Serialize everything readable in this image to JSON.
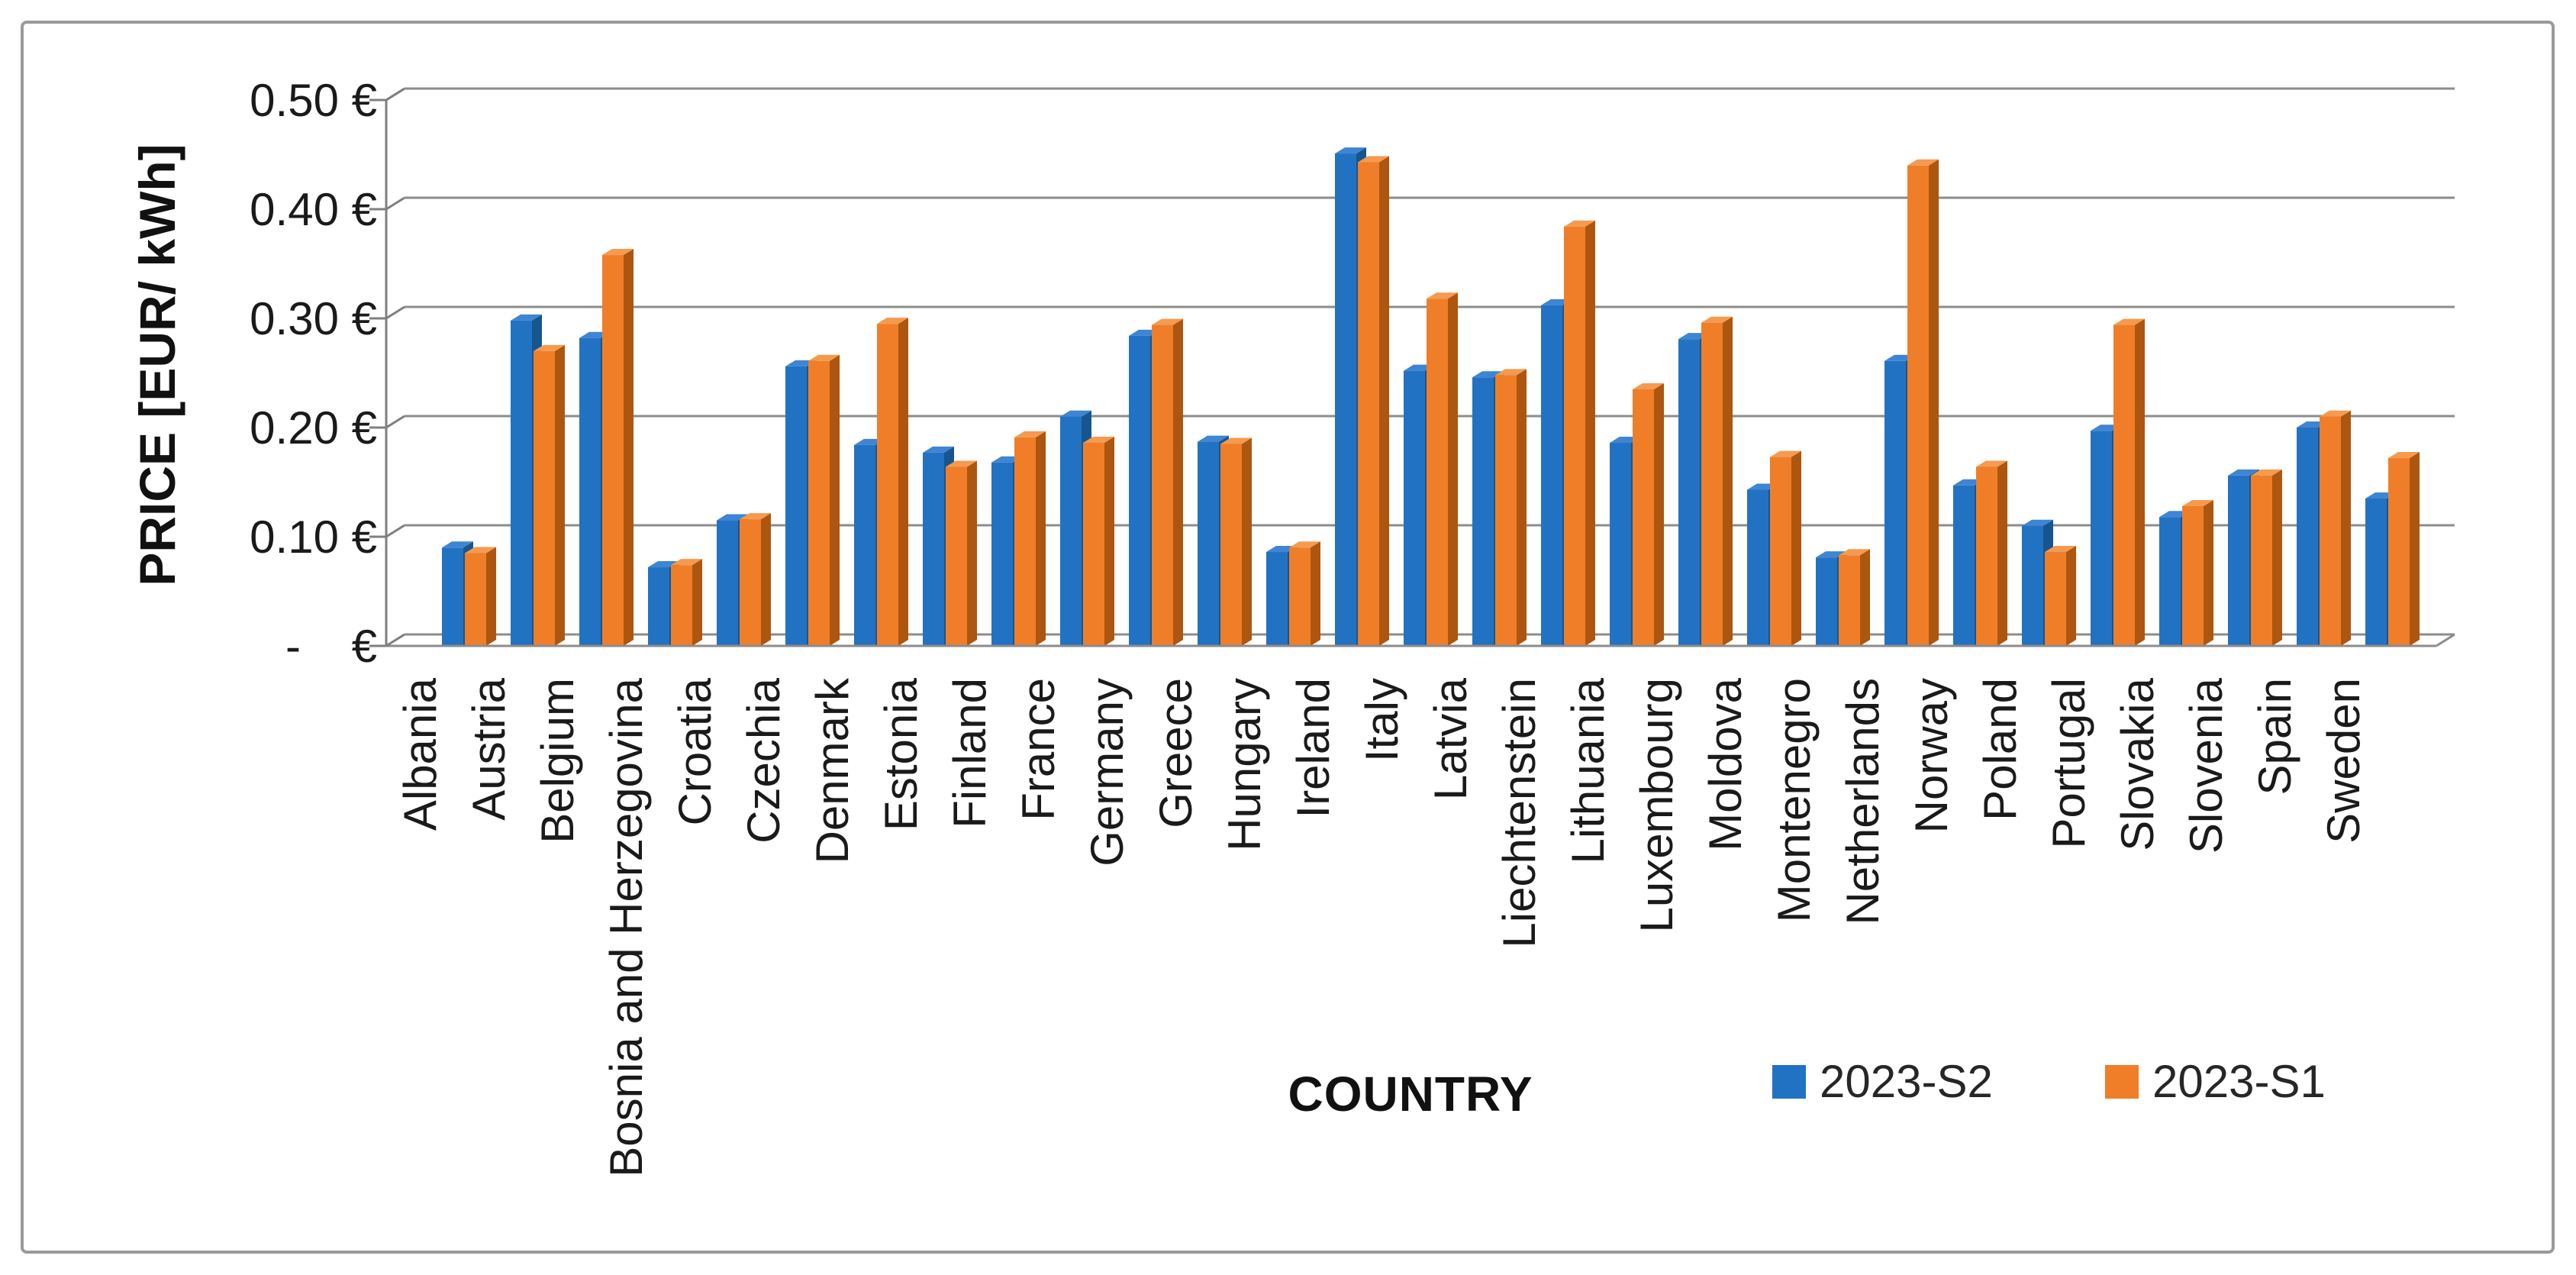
{
  "chart_data": {
    "type": "bar",
    "style_3d": "clustered-3d",
    "title": "",
    "xlabel": "COUNTRY",
    "ylabel": "PRICE [EUR/ kWh]",
    "categories": [
      "Albania",
      "Austria",
      "Belgium",
      "Bosnia and Herzegovina",
      "Croatia",
      "Czechia",
      "Denmark",
      "Estonia",
      "Finland",
      "France",
      "Germany",
      "Greece",
      "Hungary",
      "Ireland",
      "Italy",
      "Latvia",
      "Liechtenstein",
      "Lithuania",
      "Luxembourg",
      "Moldova",
      "Montenegro",
      "Netherlands",
      "Norway",
      "Poland",
      "Portugal",
      "Slovakia",
      "Slovenia",
      "Spain",
      "Sweden"
    ],
    "series": [
      {
        "name": "2023-S2",
        "color": "#2272C4",
        "color_top": "#3E85D3",
        "color_side": "#17558F",
        "values": [
          0.09,
          0.298,
          0.282,
          0.072,
          0.115,
          0.256,
          0.184,
          0.177,
          0.168,
          0.21,
          0.284,
          0.187,
          0.086,
          0.451,
          0.252,
          0.246,
          0.312,
          0.186,
          0.281,
          0.143,
          0.081,
          0.261,
          0.147,
          0.11,
          0.197,
          0.118,
          0.156,
          0.2,
          0.135
        ]
      },
      {
        "name": "2023-S1",
        "color": "#F07E28",
        "color_top": "#F59A4E",
        "color_side": "#AD5610",
        "values": [
          0.085,
          0.27,
          0.358,
          0.074,
          0.116,
          0.261,
          0.295,
          0.164,
          0.191,
          0.186,
          0.294,
          0.185,
          0.09,
          0.443,
          0.318,
          0.248,
          0.384,
          0.235,
          0.296,
          0.173,
          0.083,
          0.44,
          0.164,
          0.086,
          0.294,
          0.128,
          0.156,
          0.21,
          0.172
        ]
      }
    ],
    "ylim": [
      0,
      0.5
    ],
    "ytick_step": 0.1,
    "ytick_labels": [
      "-    €",
      "0.10 €",
      "0.20 €",
      "0.30 €",
      "0.40 €",
      "0.50 €"
    ],
    "grid": true,
    "legend_position": "bottom-right"
  },
  "style": {
    "grid_color": "#8C8C8C",
    "axis_color": "#7F7F7F",
    "text_color": "#1A1A1A",
    "frame_color": "#9A9A9A",
    "background": "#FFFFFF"
  }
}
